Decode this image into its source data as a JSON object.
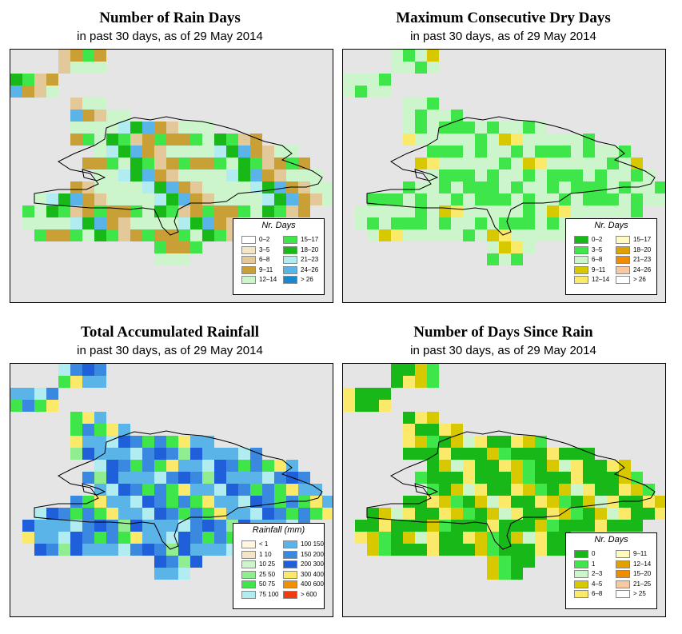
{
  "panels": [
    {
      "id": "rain-days",
      "title": "Number of Rain Days",
      "subtitle": "in past 30 days, as of  29 May 2014",
      "legend_title": "Nr. Days",
      "legend": [
        {
          "label": "0–2",
          "color": "#ffffff"
        },
        {
          "label": "3–5",
          "color": "#f3e6c8"
        },
        {
          "label": "6–8",
          "color": "#e3c99a"
        },
        {
          "label": "9–11",
          "color": "#c9a036"
        },
        {
          "label": "12–14",
          "color": "#ccf5cc"
        },
        {
          "label": "15–17",
          "color": "#3ee64a"
        },
        {
          "label": "18–20",
          "color": "#17b817"
        },
        {
          "label": "21–23",
          "color": "#b0ecf0"
        },
        {
          "label": "24–26",
          "color": "#5ab4e8"
        },
        {
          "label": "> 26",
          "color": "#1a88cf"
        }
      ],
      "pattern": [
        "#ccf5cc",
        "#c9a036",
        "#3ee64a",
        "#ccf5cc",
        "#17b817",
        "#e3c99a",
        "#c9a036",
        "#b0ecf0",
        "#3ee64a",
        "#ccf5cc",
        "#c9a036",
        "#17b817",
        "#e3c99a",
        "#ccf5cc",
        "#3ee64a",
        "#5ab4e8",
        "#c9a036",
        "#ccf5cc"
      ]
    },
    {
      "id": "dry-days",
      "title": "Maximum Consecutive Dry Days",
      "subtitle": "in past 30 days, as of  29 May 2014",
      "legend_title": "Nr. Days",
      "legend": [
        {
          "label": "0–2",
          "color": "#17b817"
        },
        {
          "label": "3–5",
          "color": "#3ee64a"
        },
        {
          "label": "6–8",
          "color": "#ccf5cc"
        },
        {
          "label": "9–11",
          "color": "#d8c800"
        },
        {
          "label": "12–14",
          "color": "#fbe96a"
        },
        {
          "label": "15–17",
          "color": "#fffbc0"
        },
        {
          "label": "18–20",
          "color": "#e0a000"
        },
        {
          "label": "21–23",
          "color": "#f08c00"
        },
        {
          "label": "24–26",
          "color": "#f8c8a0"
        },
        {
          "label": "> 26",
          "color": "#ffffff"
        }
      ],
      "pattern": [
        "#ccf5cc",
        "#3ee64a",
        "#ccf5cc",
        "#3ee64a",
        "#ccf5cc",
        "#ccf5cc",
        "#d8c800",
        "#3ee64a",
        "#ccf5cc",
        "#ccf5cc",
        "#fbe96a",
        "#3ee64a",
        "#ccf5cc",
        "#3ee64a",
        "#ccf5cc",
        "#ccf5cc",
        "#3ee64a",
        "#ccf5cc"
      ]
    },
    {
      "id": "total-rainfall",
      "title": "Total Accumulated Rainfall",
      "subtitle": "in past 30 days, as of  29 May 2014",
      "legend_title": "Rainfall (mm)",
      "legend": [
        {
          "label": "< 1",
          "color": "#fff5e0"
        },
        {
          "label": "1    10",
          "color": "#f3e6c8"
        },
        {
          "label": "10    25",
          "color": "#ccf5cc"
        },
        {
          "label": "25    50",
          "color": "#90ee90"
        },
        {
          "label": "50    75",
          "color": "#3ee64a"
        },
        {
          "label": "75  100",
          "color": "#b0ecf0"
        },
        {
          "label": "100  150",
          "color": "#5ab4e8"
        },
        {
          "label": "150  200",
          "color": "#3a88e0"
        },
        {
          "label": "200  300",
          "color": "#1f5fd9"
        },
        {
          "label": "300  400",
          "color": "#fbe96a"
        },
        {
          "label": "400  600",
          "color": "#f09000"
        },
        {
          "label": "> 600",
          "color": "#f03a10"
        }
      ],
      "pattern": [
        "#5ab4e8",
        "#3a88e0",
        "#1f5fd9",
        "#b0ecf0",
        "#5ab4e8",
        "#3ee64a",
        "#3a88e0",
        "#1f5fd9",
        "#5ab4e8",
        "#fbe96a",
        "#90ee90",
        "#3a88e0",
        "#b0ecf0",
        "#5ab4e8",
        "#1f5fd9",
        "#3ee64a",
        "#3a88e0",
        "#5ab4e8"
      ]
    },
    {
      "id": "days-since-rain",
      "title": "Number of Days Since Rain",
      "subtitle": "in past 30 days, as of  29 May 2014",
      "legend_title": "Nr. Days",
      "legend": [
        {
          "label": "0",
          "color": "#17b817"
        },
        {
          "label": "1",
          "color": "#3ee64a"
        },
        {
          "label": "2–3",
          "color": "#ccf5cc"
        },
        {
          "label": "4–5",
          "color": "#d8c800"
        },
        {
          "label": "6–8",
          "color": "#fbe96a"
        },
        {
          "label": "9–11",
          "color": "#fffbc0"
        },
        {
          "label": "12–14",
          "color": "#e0a000"
        },
        {
          "label": "15–20",
          "color": "#f08c00"
        },
        {
          "label": "21–25",
          "color": "#f8c8a0"
        },
        {
          "label": "> 25",
          "color": "#ffffff"
        }
      ],
      "pattern": [
        "#17b817",
        "#17b817",
        "#d8c800",
        "#17b817",
        "#fbe96a",
        "#17b817",
        "#3ee64a",
        "#d8c800",
        "#17b817",
        "#fbe96a",
        "#17b817",
        "#ccf5cc",
        "#17b817",
        "#d8c800",
        "#17b817",
        "#fbe96a",
        "#17b817",
        "#3ee64a"
      ]
    }
  ]
}
